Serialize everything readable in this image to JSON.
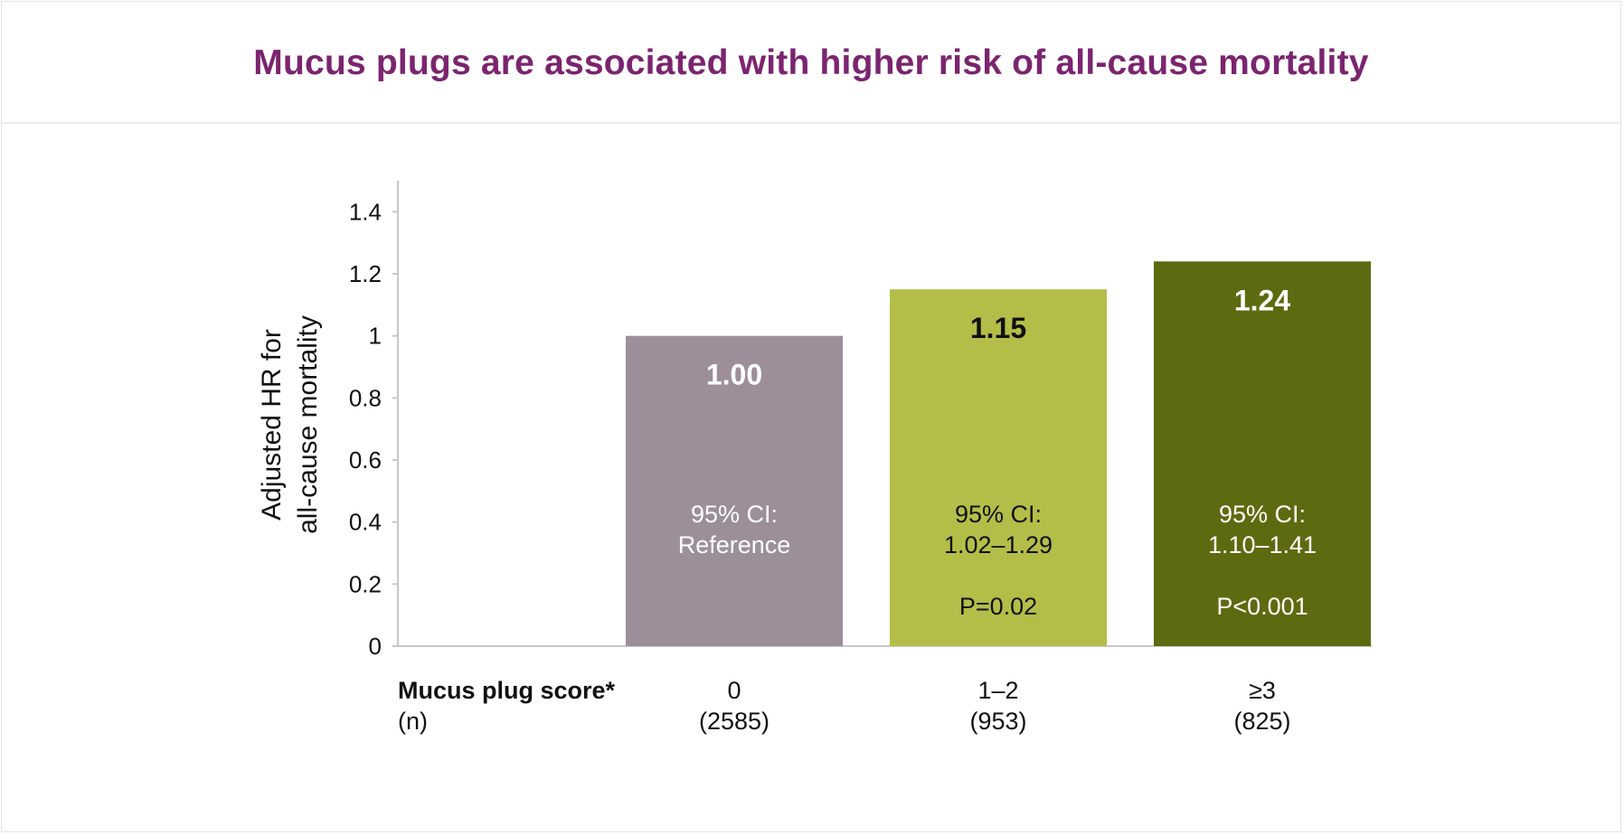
{
  "title": "Mucus plugs are associated with higher risk of all-cause mortality",
  "colors": {
    "title": "#7b2470",
    "axis": "#c8c8c8",
    "text": "#111111"
  },
  "chart_data": {
    "type": "bar",
    "title": "Mucus plugs are associated with higher risk of all-cause mortality",
    "ylabel_lines": [
      "Adjusted HR for",
      "all-cause mortality"
    ],
    "ylim": [
      0,
      1.5
    ],
    "yticks": [
      0,
      0.2,
      0.4,
      0.6,
      0.8,
      1,
      1.2,
      1.4
    ],
    "ytick_labels": [
      "0",
      "0.2",
      "0.4",
      "0.6",
      "0.8",
      "1",
      "1.2",
      "1.4"
    ],
    "xlabel_lines": [
      "Mucus plug score*",
      "(n)"
    ],
    "grid": false,
    "legend": "none",
    "categories": [
      "0",
      "1–2",
      "≥3"
    ],
    "n_labels": [
      "(2585)",
      "(953)",
      "(825)"
    ],
    "values": [
      1.0,
      1.15,
      1.24
    ],
    "value_labels": [
      "1.00",
      "1.15",
      "1.24"
    ],
    "ci_lines": [
      [
        "95% CI:",
        "Reference"
      ],
      [
        "95% CI:",
        "1.02–1.29"
      ],
      [
        "95% CI:",
        "1.10–1.41"
      ]
    ],
    "p_labels": [
      "",
      "P=0.02",
      "P<0.001"
    ],
    "bar_colors": [
      "#9c8f9a",
      "#b4bd48",
      "#5e6a10"
    ],
    "label_colors": [
      "#ffffff",
      "#111111",
      "#ffffff"
    ]
  }
}
